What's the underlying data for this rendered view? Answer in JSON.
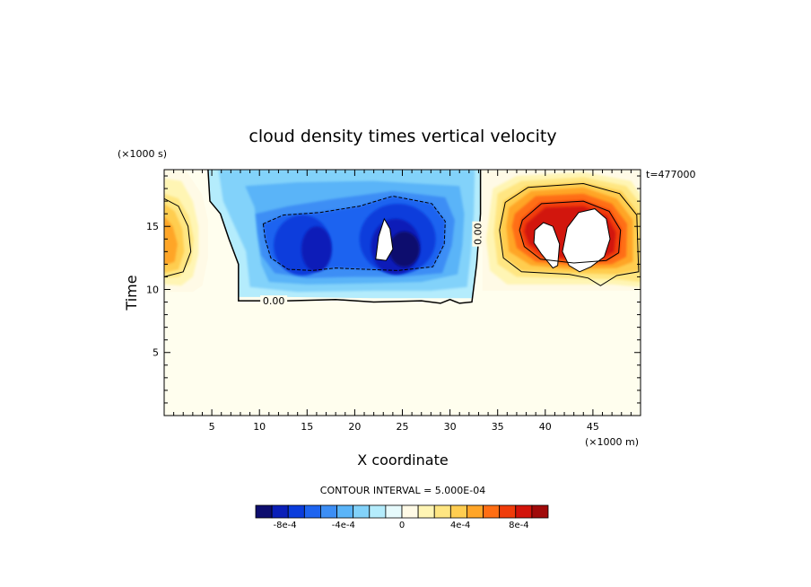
{
  "chart_data": {
    "type": "heatmap",
    "title": "cloud density times vertical velocity",
    "xlabel": "X coordinate",
    "ylabel": "Time",
    "x_units": "(×1000 m)",
    "y_units": "(×1000 s)",
    "time_stamp": "t=477000",
    "xlim": [
      0,
      50
    ],
    "ylim": [
      0,
      19.5
    ],
    "x_ticks": [
      5,
      10,
      15,
      20,
      25,
      30,
      35,
      40,
      45
    ],
    "y_ticks": [
      5,
      10,
      15
    ],
    "x_tick_labels": [
      "5",
      "10",
      "15",
      "20",
      "25",
      "30",
      "35",
      "40",
      "45"
    ],
    "y_tick_labels": [
      "5",
      "10",
      "15"
    ],
    "contour_labels": [
      "0.00",
      "0.00"
    ],
    "contour_interval_text": "CONTOUR INTERVAL = 5.000E-04",
    "colorbar": {
      "colors": [
        "#0d0d6e",
        "#0a1fb8",
        "#0a3cdc",
        "#1e64f0",
        "#3c8ef5",
        "#5ab4f8",
        "#82d2fa",
        "#b4ecfc",
        "#e6fafc",
        "#fffae6",
        "#fff5b4",
        "#ffe682",
        "#ffcd50",
        "#ffa528",
        "#ff6e14",
        "#f03c0a",
        "#d2140a",
        "#a00a0a"
      ],
      "tick_labels": [
        "-8e-4",
        "-4e-4",
        "0",
        "4e-4",
        "8e-4"
      ],
      "tick_values": [
        -0.0008,
        -0.0004,
        0,
        0.0004,
        0.0008
      ],
      "range": [
        -0.001,
        0.001
      ]
    },
    "field": {
      "background_color": "#fffeee",
      "cloud_bottom_time": 9.3,
      "negative_region_x": [
        8,
        33
      ],
      "features": [
        {
          "kind": "updraft_core",
          "x": 1.5,
          "y": 13.5,
          "amplitude": 0.0007
        },
        {
          "kind": "downdraft",
          "x": 16,
          "y": 14,
          "amplitude": -0.0008
        },
        {
          "kind": "downdraft",
          "x": 23.5,
          "y": 14,
          "amplitude": -0.001
        },
        {
          "kind": "updraft",
          "x": 43.5,
          "y": 14,
          "amplitude": 0.001
        }
      ]
    }
  }
}
